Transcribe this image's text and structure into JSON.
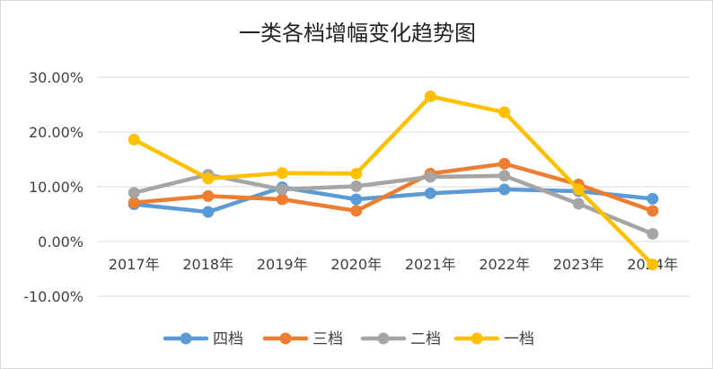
{
  "chart_data": {
    "type": "line",
    "title": "一类各档增幅变化趋势图",
    "categories": [
      "2017年",
      "2018年",
      "2019年",
      "2020年",
      "2021年",
      "2022年",
      "2023年",
      "2024年"
    ],
    "y_tick_labels": [
      "30.00%",
      "20.00%",
      "10.00%",
      "0.00%",
      "-10.00%"
    ],
    "y_ticks": [
      30,
      20,
      10,
      0,
      -10
    ],
    "ylim": [
      -10,
      30
    ],
    "grid": true,
    "legend_position": "bottom",
    "series": [
      {
        "name": "四档",
        "color": "#5B9BD5",
        "values": [
          6.8,
          5.4,
          9.9,
          7.7,
          8.8,
          9.5,
          9.2,
          7.8
        ]
      },
      {
        "name": "三档",
        "color": "#ED7D31",
        "values": [
          7.1,
          8.3,
          7.7,
          5.6,
          12.4,
          14.2,
          10.4,
          5.6
        ]
      },
      {
        "name": "二档",
        "color": "#A5A5A5",
        "values": [
          8.9,
          12.2,
          9.5,
          10.1,
          11.8,
          12.0,
          6.9,
          1.4
        ]
      },
      {
        "name": "一档",
        "color": "#FFC000",
        "values": [
          18.6,
          11.5,
          12.5,
          12.4,
          26.5,
          23.6,
          9.5,
          -4.2
        ]
      }
    ]
  }
}
